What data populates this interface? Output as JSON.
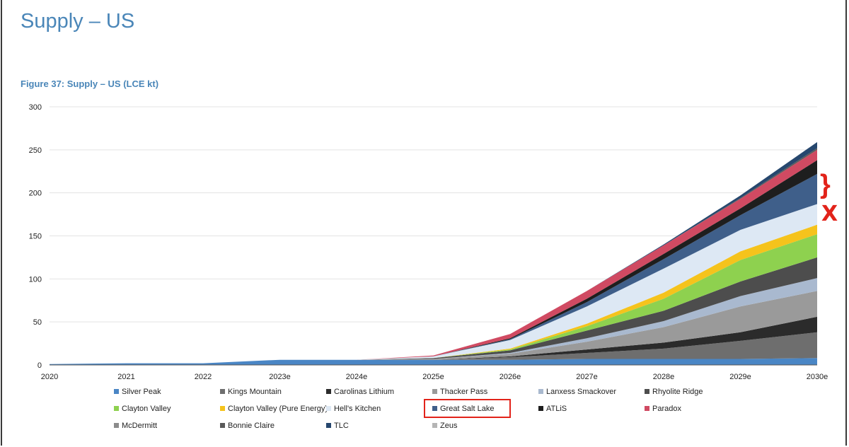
{
  "page": {
    "title": "Supply – US",
    "annotation_brace": "}",
    "annotation_mark": "X"
  },
  "colors": {
    "highlight": "#e2231a",
    "title": "#4a86b8"
  },
  "chart_data": {
    "type": "area",
    "stacked": true,
    "title": "Figure 37: Supply – US (LCE kt)",
    "xlabel": "",
    "ylabel": "",
    "ylim": [
      0,
      300
    ],
    "yticks": [
      0,
      50,
      100,
      150,
      200,
      250,
      300
    ],
    "grid": true,
    "legend_position": "bottom",
    "highlighted_legend_entry": "Great Salt Lake",
    "categories": [
      "2020",
      "2021",
      "2022",
      "2023e",
      "2024e",
      "2025e",
      "2026e",
      "2027e",
      "2028e",
      "2029e",
      "2030e"
    ],
    "series": [
      {
        "name": "Silver Peak",
        "color": "#4a86c5",
        "values": [
          1,
          2,
          2,
          6,
          6,
          6,
          6,
          7,
          7,
          7,
          8
        ]
      },
      {
        "name": "Kings Mountain",
        "color": "#6e6e6e",
        "values": [
          0,
          0,
          0,
          0,
          0,
          0,
          3,
          7,
          12,
          21,
          30
        ]
      },
      {
        "name": "Carolinas Lithium",
        "color": "#2b2b2b",
        "values": [
          0,
          0,
          0,
          0,
          0,
          0,
          1,
          4,
          7,
          10,
          18
        ]
      },
      {
        "name": "Thacker Pass",
        "color": "#9a9a9a",
        "values": [
          0,
          0,
          0,
          0,
          0,
          1,
          3,
          9,
          18,
          30,
          30
        ]
      },
      {
        "name": "Lanxess Smackover",
        "color": "#a9b9cf",
        "values": [
          0,
          0,
          0,
          0,
          0,
          0,
          1,
          4,
          7,
          12,
          15
        ]
      },
      {
        "name": "Rhyolite Ridge",
        "color": "#4d4d4d",
        "values": [
          0,
          0,
          0,
          0,
          0,
          1,
          3,
          9,
          12,
          17,
          24
        ]
      },
      {
        "name": "Clayton Valley",
        "color": "#8ed14f",
        "values": [
          0,
          0,
          0,
          0,
          0,
          0,
          1,
          5,
          14,
          25,
          27
        ]
      },
      {
        "name": "Clayton Valley (Pure Energy)",
        "color": "#f5c31c",
        "values": [
          0,
          0,
          0,
          0,
          0,
          0,
          1,
          3,
          7,
          10,
          11
        ]
      },
      {
        "name": "Hell's Kitchen",
        "color": "#dde8f4",
        "values": [
          0,
          0,
          0,
          0,
          0,
          2,
          10,
          20,
          28,
          25,
          24
        ]
      },
      {
        "name": "Great Salt Lake",
        "color": "#3f5f8a",
        "values": [
          0,
          0,
          0,
          0,
          0,
          0,
          1,
          5,
          11,
          17,
          35
        ]
      },
      {
        "name": "ATLiS",
        "color": "#1e1e1e",
        "values": [
          0,
          0,
          0,
          0,
          0,
          0,
          1,
          4,
          6,
          8,
          16
        ]
      },
      {
        "name": "Paradox",
        "color": "#d04a62",
        "values": [
          0,
          0,
          0,
          0,
          0,
          1,
          5,
          9,
          10,
          11,
          12
        ]
      },
      {
        "name": "McDermitt",
        "color": "#8c8c8c",
        "values": [
          0,
          0,
          0,
          0,
          0,
          0,
          0,
          0,
          0,
          0,
          0
        ]
      },
      {
        "name": "Bonnie Claire",
        "color": "#5a5a5a",
        "values": [
          0,
          0,
          0,
          0,
          0,
          0,
          0,
          0,
          0,
          1,
          2
        ]
      },
      {
        "name": "TLC",
        "color": "#26476e",
        "values": [
          0,
          0,
          0,
          0,
          0,
          0,
          0,
          0,
          1,
          3,
          7
        ]
      },
      {
        "name": "Zeus",
        "color": "#b5b5b5",
        "values": [
          0,
          0,
          0,
          0,
          0,
          0,
          0,
          0,
          0,
          0,
          0
        ]
      }
    ]
  }
}
